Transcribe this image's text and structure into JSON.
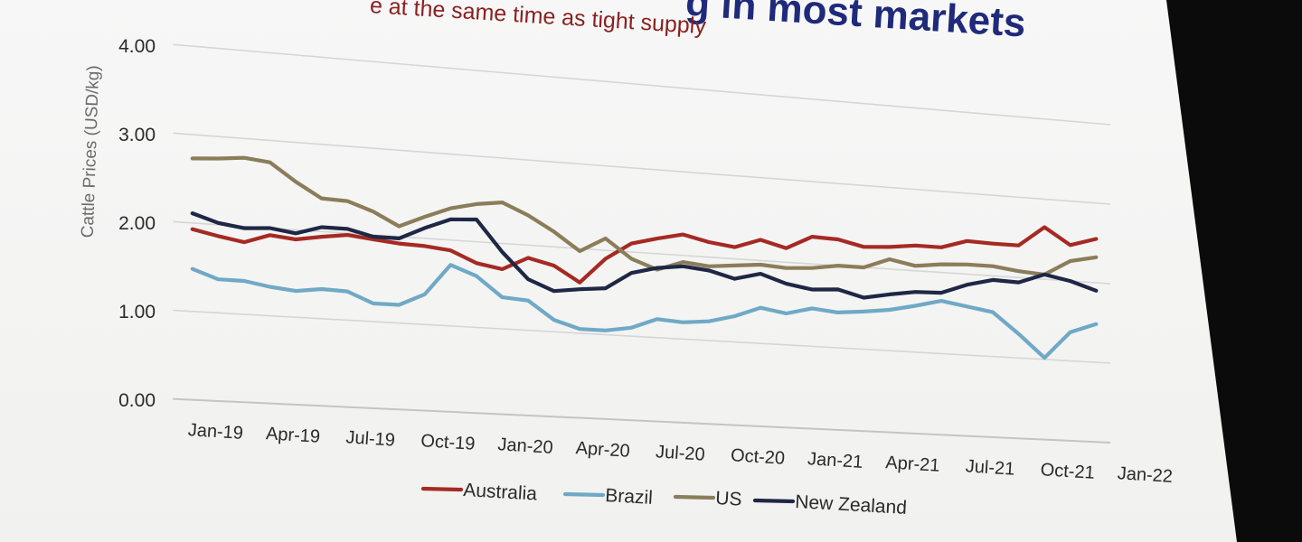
{
  "title": "g in most markets",
  "subtitle": "e at the same time as tight supply",
  "chart_data": {
    "type": "line",
    "ylabel": "Cattle Prices (USD/kg)",
    "ylim": [
      0,
      4
    ],
    "yticks": [
      "0.00",
      "1.00",
      "2.00",
      "3.00",
      "4.00"
    ],
    "xticks": [
      "Jan-19",
      "Apr-19",
      "Jul-19",
      "Oct-19",
      "Jan-20",
      "Apr-20",
      "Jul-20",
      "Oct-20",
      "Jan-21",
      "Apr-21",
      "Jul-21",
      "Oct-21",
      "Jan-22"
    ],
    "grid": true,
    "legend_position": "bottom",
    "x": [
      "Jan-19",
      "Feb-19",
      "Mar-19",
      "Apr-19",
      "May-19",
      "Jun-19",
      "Jul-19",
      "Aug-19",
      "Sep-19",
      "Oct-19",
      "Nov-19",
      "Dec-19",
      "Jan-20",
      "Feb-20",
      "Mar-20",
      "Apr-20",
      "May-20",
      "Jun-20",
      "Jul-20",
      "Aug-20",
      "Sep-20",
      "Oct-20",
      "Nov-20",
      "Dec-20",
      "Jan-21",
      "Feb-21",
      "Mar-21",
      "Apr-21",
      "May-21",
      "Jun-21",
      "Jul-21",
      "Aug-21",
      "Sep-21",
      "Oct-21",
      "Nov-21",
      "Dec-21"
    ],
    "series": [
      {
        "name": "Australia",
        "color": "#a52a23",
        "values": [
          1.93,
          1.87,
          1.82,
          1.92,
          1.89,
          1.94,
          1.98,
          1.95,
          1.92,
          1.91,
          1.88,
          1.75,
          1.7,
          1.85,
          1.78,
          1.6,
          1.9,
          2.1,
          2.18,
          2.25,
          2.18,
          2.14,
          2.25,
          2.17,
          2.33,
          2.32,
          2.25,
          2.27,
          2.31,
          2.31,
          2.41,
          2.4,
          2.4,
          2.65,
          2.45,
          2.55
        ]
      },
      {
        "name": "Brazil",
        "color": "#6fa9c6",
        "values": [
          1.48,
          1.38,
          1.38,
          1.33,
          1.3,
          1.34,
          1.33,
          1.21,
          1.21,
          1.35,
          1.71,
          1.6,
          1.37,
          1.35,
          1.14,
          1.05,
          1.05,
          1.1,
          1.22,
          1.2,
          1.23,
          1.31,
          1.43,
          1.38,
          1.46,
          1.43,
          1.46,
          1.5,
          1.57,
          1.65,
          1.6,
          1.55,
          1.3,
          1.02,
          1.36,
          1.48
        ]
      },
      {
        "name": "US",
        "color": "#8c7d5a",
        "values": [
          2.73,
          2.75,
          2.78,
          2.75,
          2.55,
          2.38,
          2.37,
          2.27,
          2.12,
          2.25,
          2.37,
          2.44,
          2.48,
          2.35,
          2.18,
          1.97,
          2.14,
          1.92,
          1.81,
          1.92,
          1.89,
          1.92,
          1.95,
          1.93,
          1.95,
          2.0,
          2.0,
          2.12,
          2.06,
          2.1,
          2.12,
          2.12,
          2.08,
          2.06,
          2.25,
          2.32
        ]
      },
      {
        "name": "New Zealand",
        "color": "#1e2745",
        "values": [
          2.11,
          2.02,
          1.98,
          2.0,
          1.96,
          2.05,
          2.05,
          1.98,
          1.98,
          2.12,
          2.24,
          2.26,
          1.9,
          1.6,
          1.48,
          1.52,
          1.55,
          1.75,
          1.83,
          1.87,
          1.84,
          1.76,
          1.84,
          1.74,
          1.69,
          1.71,
          1.63,
          1.69,
          1.74,
          1.75,
          1.87,
          1.95,
          1.94,
          2.06,
          2.0,
          1.9
        ]
      }
    ]
  }
}
